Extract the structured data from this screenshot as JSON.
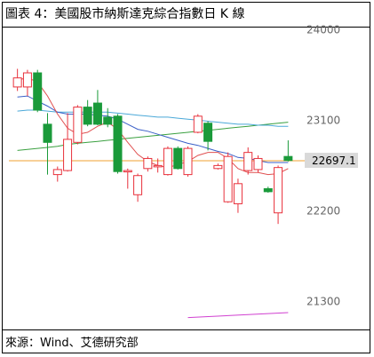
{
  "title": "圖表 4：美國股市納斯達克綜合指數日 K 線",
  "source": "來源：Wind、艾德研究部",
  "chart_data": {
    "type": "candlestick",
    "y_ticks": [
      {
        "value": 24000,
        "label": "24000"
      },
      {
        "value": 23100,
        "label": "23100"
      },
      {
        "value": 22200,
        "label": "22200"
      },
      {
        "value": 21300,
        "label": "21300"
      }
    ],
    "ylim": [
      21040,
      24020
    ],
    "last_value": 22697.1,
    "last_label": "22697.1",
    "colors": {
      "up": "#e8323c",
      "down": "#1a9a3a",
      "last_line": "#f0a030",
      "ma_blue": "#3a5fc8",
      "ma_red": "#e05050",
      "ma_cyan": "#4aa8d8",
      "ma_green": "#3aa040",
      "ma_magenta": "#d040d0"
    },
    "candles": [
      {
        "open": 23430,
        "close": 23520,
        "high": 23610,
        "low": 23390
      },
      {
        "open": 23430,
        "close": 23570,
        "high": 23600,
        "low": 23340
      },
      {
        "open": 23570,
        "close": 23200,
        "high": 23600,
        "low": 23180
      },
      {
        "open": 23060,
        "close": 22880,
        "high": 23170,
        "low": 22560
      },
      {
        "open": 22560,
        "close": 22610,
        "high": 22640,
        "low": 22490
      },
      {
        "open": 22600,
        "close": 22910,
        "high": 23170,
        "low": 22590
      },
      {
        "open": 22880,
        "close": 23230,
        "high": 23250,
        "low": 22860
      },
      {
        "open": 23230,
        "close": 23060,
        "high": 23300,
        "low": 23040
      },
      {
        "open": 23270,
        "close": 23060,
        "high": 23400,
        "low": 23050
      },
      {
        "open": 23130,
        "close": 23060,
        "high": 23220,
        "low": 23030
      },
      {
        "open": 23140,
        "close": 22590,
        "high": 23160,
        "low": 22570
      },
      {
        "open": 22590,
        "close": 22600,
        "high": 22620,
        "low": 22420
      },
      {
        "open": 22360,
        "close": 22550,
        "high": 22570,
        "low": 22290
      },
      {
        "open": 22620,
        "close": 22720,
        "high": 22740,
        "low": 22590
      },
      {
        "open": 22650,
        "close": 22650,
        "high": 22720,
        "low": 22580
      },
      {
        "open": 22560,
        "close": 22820,
        "high": 22840,
        "low": 22550
      },
      {
        "open": 22820,
        "close": 22620,
        "high": 22840,
        "low": 22610
      },
      {
        "open": 22560,
        "close": 22820,
        "high": 22840,
        "low": 22540
      },
      {
        "open": 22980,
        "close": 23140,
        "high": 23160,
        "low": 22970
      },
      {
        "open": 23070,
        "close": 22890,
        "high": 23090,
        "low": 22800
      },
      {
        "open": 22620,
        "close": 22650,
        "high": 22670,
        "low": 22610
      },
      {
        "open": 22290,
        "close": 22740,
        "high": 22780,
        "low": 22280
      },
      {
        "open": 22270,
        "close": 22470,
        "high": 22520,
        "low": 22180
      },
      {
        "open": 22600,
        "close": 22780,
        "high": 22830,
        "low": 22560
      },
      {
        "open": 22610,
        "close": 22720,
        "high": 22750,
        "low": 22580
      },
      {
        "open": 22420,
        "close": 22390,
        "high": 22440,
        "low": 22380
      },
      {
        "open": 22180,
        "close": 22630,
        "high": 22650,
        "low": 22070
      },
      {
        "open": 22740,
        "close": 22700,
        "high": 22900,
        "low": 22690
      }
    ],
    "ma_blue": [
      23330,
      23340,
      23290,
      23240,
      23180,
      23160,
      23160,
      23160,
      23150,
      23140,
      23110,
      23060,
      23010,
      22990,
      22960,
      22930,
      22900,
      22870,
      22850,
      22820,
      22790,
      22770,
      22730,
      22720,
      22700,
      22680,
      22680,
      22680
    ],
    "ma_red": [
      23500,
      23520,
      23480,
      23340,
      23160,
      23020,
      22960,
      22980,
      23040,
      23080,
      23010,
      22880,
      22760,
      22690,
      22650,
      22630,
      22660,
      22690,
      22750,
      22780,
      22780,
      22720,
      22620,
      22580,
      22580,
      22560,
      22570,
      22620
    ],
    "ma_cyan": [
      23190,
      23200,
      23200,
      23190,
      23180,
      23180,
      23180,
      23180,
      23180,
      23180,
      23170,
      23160,
      23150,
      23140,
      23130,
      23130,
      23120,
      23110,
      23100,
      23090,
      23080,
      23070,
      23060,
      23060,
      23050,
      23050,
      23040,
      23040
    ],
    "ma_green": [
      22800,
      22810,
      22820,
      22830,
      22840,
      22860,
      22870,
      22880,
      22890,
      22900,
      22910,
      22920,
      22930,
      22940,
      22950,
      22960,
      22970,
      22980,
      22990,
      23000,
      23010,
      23020,
      23030,
      23040,
      23050,
      23060,
      23070,
      23080
    ],
    "ma_magenta": {
      "start_index": 17,
      "values": [
        21140,
        21190
      ]
    }
  }
}
